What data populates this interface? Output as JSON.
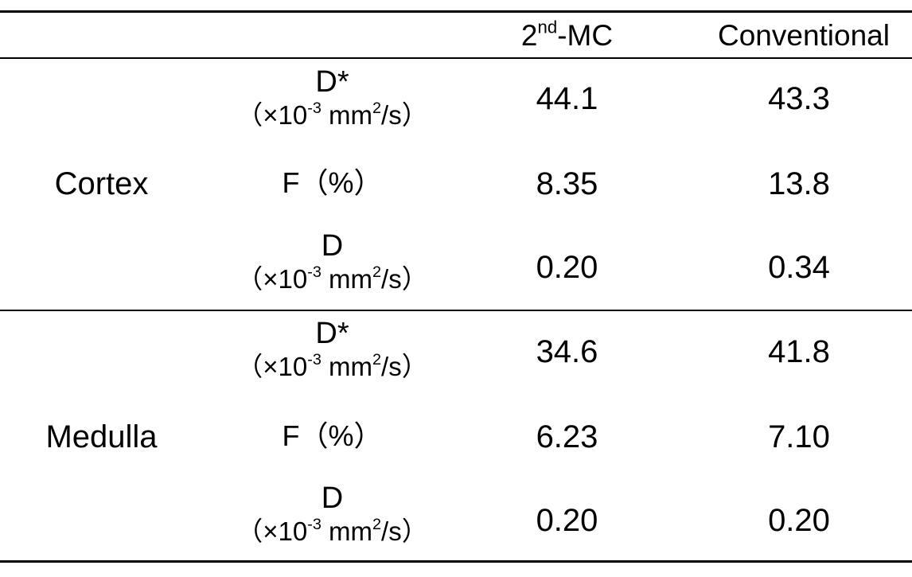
{
  "header": {
    "col_2nd_base": "2",
    "col_2nd_sup": "nd",
    "col_2nd_rest": "-MC",
    "col_conventional": "Conventional"
  },
  "units": {
    "open": "（×10",
    "exp": "-3",
    "mid": " mm",
    "sq": "2",
    "close": "/s）"
  },
  "groups": [
    {
      "name": "Cortex",
      "rows": [
        {
          "param": "D*",
          "has_unit": true,
          "mc": "44.1",
          "conv": "43.3"
        },
        {
          "param": "F（%）",
          "has_unit": false,
          "mc": "8.35",
          "conv": "13.8"
        },
        {
          "param": "D",
          "has_unit": true,
          "mc": "0.20",
          "conv": "0.34"
        }
      ]
    },
    {
      "name": "Medulla",
      "rows": [
        {
          "param": "D*",
          "has_unit": true,
          "mc": "34.6",
          "conv": "41.8"
        },
        {
          "param": "F（%）",
          "has_unit": false,
          "mc": "6.23",
          "conv": "7.10"
        },
        {
          "param": "D",
          "has_unit": true,
          "mc": "0.20",
          "conv": "0.20"
        }
      ]
    }
  ]
}
